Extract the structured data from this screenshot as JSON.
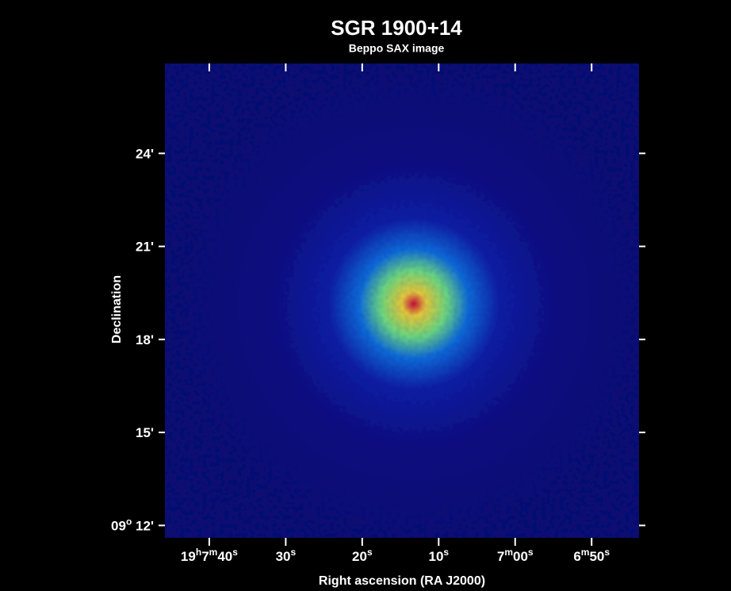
{
  "chart_data": {
    "type": "image",
    "title": "SGR 1900+14",
    "subtitle": "Beppo SAX image",
    "xlabel": "Right ascension (RA J2000)",
    "ylabel": "Declination",
    "xlim": [
      465.8,
      403.8
    ],
    "xticks": [
      {
        "value": 460,
        "label": "19h7m40s"
      },
      {
        "value": 450,
        "label": "30s"
      },
      {
        "value": 440,
        "label": "20s"
      },
      {
        "value": 430,
        "label": "10s"
      },
      {
        "value": 420,
        "label": "7m00s"
      },
      {
        "value": 410,
        "label": "6m50s"
      }
    ],
    "ylim": [
      11.6,
      26.9
    ],
    "yticks": [
      {
        "value": 12,
        "label": "09o 12'"
      },
      {
        "value": 15,
        "label": "15'"
      },
      {
        "value": 18,
        "label": "18'"
      },
      {
        "value": 21,
        "label": "21'"
      },
      {
        "value": 24,
        "label": "24'"
      }
    ]
  }
}
